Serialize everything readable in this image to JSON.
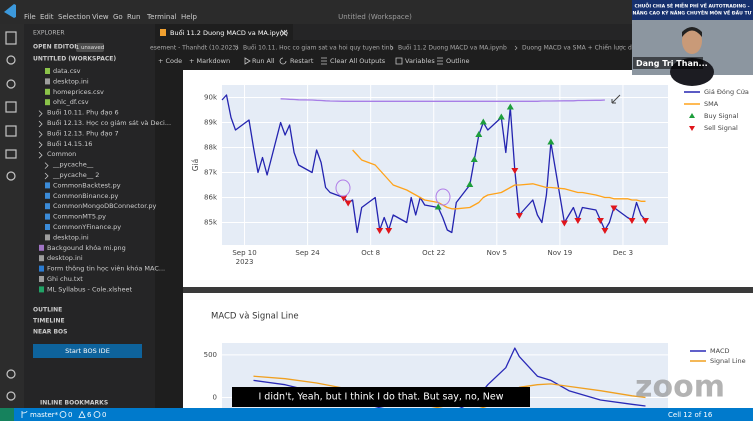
{
  "menu": {
    "items": [
      "File",
      "Edit",
      "Selection",
      "View",
      "Go",
      "Run",
      "Terminal",
      "Help"
    ],
    "window_title": "Untitled (Workspace)"
  },
  "sidebar": {
    "title": "EXPLORER",
    "open_editors": "OPEN EDITORS",
    "unsaved_badge": "1 unsaved",
    "workspace": "UNTITLED (WORKSPACE)",
    "files": [
      "data.csv",
      "desktop.ini",
      "homeprices.csv",
      "ohlc_df.csv",
      "Buổi 10.11. Phụ đạo 6",
      "Buổi 12.13. Học co giám sát và Deci...",
      "Buổi 12.13. Phụ đạo 7",
      "Buổi 14.15.16",
      "Common",
      "__pycache__",
      "__pycache__ 2",
      "CommonBacktest.py",
      "CommonBinance.py",
      "CommonMongoDBConnector.py",
      "CommonMT5.py",
      "CommonYFinance.py",
      "desktop.ini",
      "Backgound khóa mi.png",
      "desktop.ini",
      "Form thông tin học viên khóa MAC...",
      "Ghi chu.txt",
      "ML Syllabus - Cole.xlsheet"
    ],
    "sections": [
      "OUTLINE",
      "TIMELINE",
      "NEAR BOS"
    ],
    "button": "Start BOS IDE",
    "bookmarks": "INLINE BOOKMARKS"
  },
  "tabs": {
    "active": "Buổi 11.2 Duong MACD va MA.ipynb",
    "breadcrumbs": [
      "esement - Thanhdt (10.2023)",
      "Buổi 10.11. Hoc co giam sat va hoi quy tuyen tinh",
      "Buổi 11.2 Duong MACD va MA.ipynb",
      "Duong MACD va SMA + Chiến lược du..."
    ]
  },
  "toolbar": [
    "+ Code",
    "+ Markdown",
    "Run All",
    "Restart",
    "Clear All Outputs",
    "Variables",
    "Outline"
  ],
  "chart_data": [
    {
      "type": "line",
      "y_label": "Giá",
      "x": [
        "2023-09-05",
        "2023-09-06",
        "2023-09-07",
        "2023-09-08",
        "2023-09-11",
        "2023-09-12",
        "2023-09-13",
        "2023-09-14",
        "2023-09-15",
        "2023-09-18",
        "2023-09-19",
        "2023-09-20",
        "2023-09-21",
        "2023-09-22",
        "2023-09-25",
        "2023-09-26",
        "2023-09-27",
        "2023-09-28",
        "2023-09-29",
        "2023-10-02",
        "2023-10-03",
        "2023-10-04",
        "2023-10-05",
        "2023-10-06",
        "2023-10-09",
        "2023-10-10",
        "2023-10-11",
        "2023-10-12",
        "2023-10-13",
        "2023-10-16",
        "2023-10-17",
        "2023-10-18",
        "2023-10-19",
        "2023-10-20",
        "2023-10-23",
        "2023-10-24",
        "2023-10-25",
        "2023-10-26",
        "2023-10-27",
        "2023-10-30",
        "2023-10-31",
        "2023-11-01",
        "2023-11-02",
        "2023-11-03",
        "2023-11-06",
        "2023-11-07",
        "2023-11-08",
        "2023-11-09",
        "2023-11-10",
        "2023-11-13",
        "2023-11-14",
        "2023-11-15",
        "2023-11-16",
        "2023-11-17",
        "2023-11-20",
        "2023-11-21",
        "2023-11-22",
        "2023-11-23",
        "2023-11-24",
        "2023-11-27",
        "2023-11-28",
        "2023-11-29",
        "2023-11-30",
        "2023-12-01",
        "2023-12-04",
        "2023-12-05",
        "2023-12-06",
        "2023-12-07",
        "2023-12-08"
      ],
      "xlim": [
        "2023-09-05",
        "2023-12-13"
      ],
      "xticks": [
        {
          "value": "2023-09-10",
          "label": "Sep 10"
        },
        {
          "value": "2023-09-24",
          "label": "Sep 24"
        },
        {
          "value": "2023-10-08",
          "label": "Oct 8"
        },
        {
          "value": "2023-10-22",
          "label": "Oct 22"
        },
        {
          "value": "2023-11-05",
          "label": "Nov 5"
        },
        {
          "value": "2023-11-19",
          "label": "Nov 19"
        },
        {
          "value": "2023-12-03",
          "label": "Dec 3"
        }
      ],
      "x_year": "2023",
      "ylim": [
        84100,
        90500
      ],
      "yticks": [
        {
          "value": 85000,
          "label": "85k"
        },
        {
          "value": 86000,
          "label": "86k"
        },
        {
          "value": 87000,
          "label": "87k"
        },
        {
          "value": 88000,
          "label": "88k"
        },
        {
          "value": 89000,
          "label": "89k"
        },
        {
          "value": 90000,
          "label": "90k"
        }
      ],
      "grid": true,
      "series": [
        {
          "name": "Giá Đóng Cửa",
          "color": "#2424b0",
          "values": [
            89900,
            90100,
            89200,
            88700,
            89100,
            88000,
            87000,
            87600,
            86900,
            89000,
            88500,
            88900,
            87800,
            87300,
            87000,
            87900,
            87400,
            86400,
            86200,
            86000,
            85800,
            85900,
            84600,
            85600,
            86000,
            84700,
            85200,
            84700,
            85300,
            85000,
            86000,
            85300,
            86000,
            85700,
            85600,
            85200,
            84700,
            84600,
            85800,
            86500,
            87500,
            88500,
            89000,
            88700,
            89200,
            87800,
            89600,
            87100,
            85300,
            85900,
            85300,
            85000,
            86100,
            88200,
            85000,
            85300,
            85600,
            85100,
            85600,
            85500,
            85100,
            84700,
            85000,
            85600,
            85200,
            85100,
            85800,
            85300,
            85100
          ]
        },
        {
          "name": "SMA",
          "color": "#ffa31a",
          "values": [
            null,
            null,
            null,
            null,
            null,
            null,
            null,
            null,
            null,
            null,
            null,
            null,
            null,
            null,
            null,
            null,
            null,
            null,
            null,
            null,
            null,
            87900,
            87700,
            87500,
            87300,
            87100,
            86900,
            86700,
            86500,
            86300,
            86200,
            86100,
            86000,
            85900,
            85800,
            85700,
            85600,
            85550,
            85550,
            85600,
            85700,
            85800,
            86000,
            86100,
            86200,
            86300,
            86400,
            86500,
            86500,
            86550,
            86500,
            86450,
            86400,
            86400,
            86350,
            86300,
            86250,
            86200,
            86200,
            86100,
            86050,
            86000,
            86000,
            85950,
            85950,
            85900,
            85900,
            85850,
            85850
          ]
        },
        {
          "color": "#a77ee6",
          "values": [
            null,
            null,
            null,
            null,
            null,
            null,
            null,
            null,
            null,
            89950,
            89940,
            89930,
            89920,
            89910,
            89900,
            89890,
            89880,
            89870,
            89860,
            89850,
            89850,
            89850,
            89850,
            89850,
            89850,
            89850,
            89850,
            89850,
            89850,
            89850,
            89850,
            89850,
            89850,
            89850,
            89850,
            89850,
            89850,
            89850,
            89850,
            89850,
            89850,
            89850,
            89850,
            89850,
            89850,
            89850,
            89850,
            89850,
            89850,
            89850,
            89850,
            89860,
            89860,
            89860,
            89870,
            89870,
            89870,
            89880,
            89880,
            89890,
            89890,
            89900,
            null,
            null,
            null,
            null,
            null,
            null,
            null
          ]
        },
        {
          "name": "Buy Signal",
          "color": "#1e9e3c",
          "marker": "triangle-up",
          "x": [
            "2023-10-23",
            "2023-10-30",
            "2023-10-31",
            "2023-11-01",
            "2023-11-02",
            "2023-11-06",
            "2023-11-08",
            "2023-11-17"
          ],
          "values": [
            85600,
            86500,
            87500,
            88500,
            89000,
            89200,
            89600,
            88200
          ]
        },
        {
          "name": "Sell Signal",
          "color": "#e0151b",
          "marker": "triangle-down",
          "x": [
            "2023-10-02",
            "2023-10-03",
            "2023-10-10",
            "2023-10-12",
            "2023-11-09",
            "2023-11-10",
            "2023-11-20",
            "2023-11-23",
            "2023-11-28",
            "2023-11-29",
            "2023-12-01",
            "2023-12-05",
            "2023-12-08"
          ],
          "values": [
            86000,
            85800,
            84700,
            84700,
            87100,
            85300,
            85000,
            85100,
            85100,
            84700,
            85600,
            85100,
            85100
          ]
        }
      ]
    },
    {
      "type": "line",
      "title": "MACD và Signal Line",
      "x": [
        "2023-09-12",
        "2023-09-19",
        "2023-09-26",
        "2023-10-03",
        "2023-10-10",
        "2023-10-17",
        "2023-10-24",
        "2023-10-31",
        "2023-11-03",
        "2023-11-07",
        "2023-11-09",
        "2023-11-10",
        "2023-11-14",
        "2023-11-17",
        "2023-11-21",
        "2023-11-28",
        "2023-12-05",
        "2023-12-08"
      ],
      "xlim": [
        "2023-09-05",
        "2023-12-13"
      ],
      "ylim": [
        -300,
        640
      ],
      "yticks": [
        0,
        500
      ],
      "grid": true,
      "series": [
        {
          "name": "MACD",
          "color": "#2a2ab8",
          "values": [
            200,
            150,
            60,
            -20,
            -120,
            -200,
            -220,
            -50,
            150,
            350,
            580,
            480,
            250,
            200,
            80,
            -30,
            -80,
            -100
          ]
        },
        {
          "name": "Signal Line",
          "color": "#f0a020",
          "values": [
            250,
            220,
            170,
            100,
            20,
            -60,
            -130,
            -150,
            -100,
            -20,
            60,
            120,
            150,
            160,
            130,
            80,
            20,
            0
          ]
        }
      ]
    }
  ],
  "video": {
    "banner": [
      "CHUỖI CHIA SẺ MIỄN PHÍ VỀ AUTOTRADING -",
      "NÂNG CAO KỸ NĂNG CHUYÊN MÔN VỀ ĐẦU TƯ"
    ],
    "name": "Dang Tri Than..."
  },
  "subtitle": "I didn't, Yeah, but I think I do that. But say, no, New",
  "zoom_watermark": "zoom",
  "status_bar": {
    "branch": "master*",
    "errors": 0,
    "warnings": 6,
    "infos": 0,
    "cell": "Cell 12 of 16"
  }
}
